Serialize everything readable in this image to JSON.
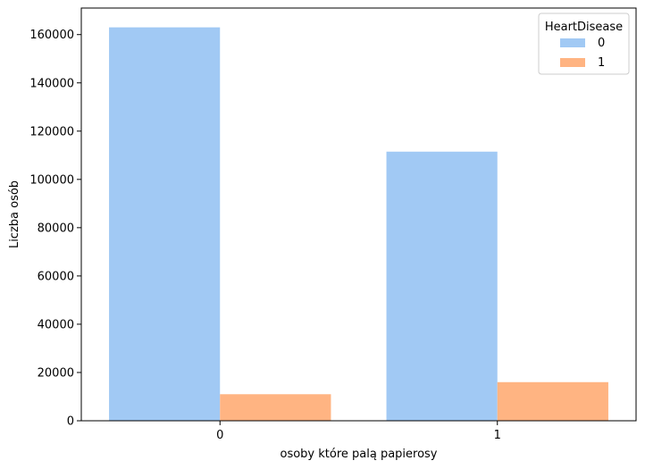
{
  "chart_data": {
    "type": "bar",
    "title": "",
    "xlabel": "osoby które palą papierosy",
    "ylabel": "Liczba osób",
    "categories": [
      "0",
      "1"
    ],
    "ylim": [
      0,
      171000
    ],
    "yticks": [
      0,
      20000,
      40000,
      60000,
      80000,
      100000,
      120000,
      140000,
      160000
    ],
    "grid": false,
    "legend": {
      "title": "HeartDisease",
      "placement": "top-right"
    },
    "series": [
      {
        "name": "0",
        "color": "#a1c9f4",
        "values": [
          163000,
          111500
        ]
      },
      {
        "name": "1",
        "color": "#ffb482",
        "values": [
          11000,
          16000
        ]
      }
    ]
  }
}
